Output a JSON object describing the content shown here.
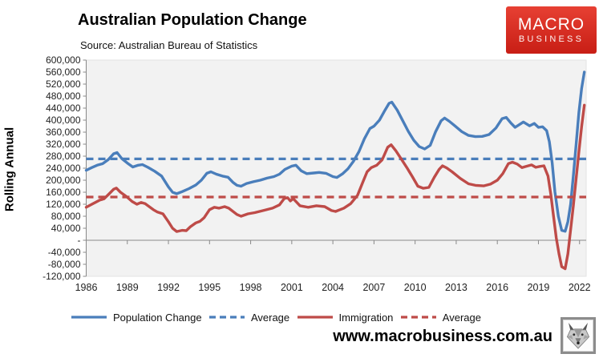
{
  "header": {
    "title": "Australian Population Change",
    "subtitle": "Source: Australian Bureau of Statistics"
  },
  "logo": {
    "line1": "MACRO",
    "line2": "BUSINESS",
    "bg_color": "#d2241c"
  },
  "footer": {
    "url": "www.macrobusiness.com.au",
    "icon": "wolf-logo"
  },
  "chart_data": {
    "type": "line",
    "title": "Australian Population Change",
    "xlabel": "",
    "ylabel": "Rolling Annual",
    "ylim": [
      -120000,
      600000
    ],
    "ytick_step": 40000,
    "ytick_labels": [
      "600,000",
      "560,000",
      "520,000",
      "480,000",
      "440,000",
      "400,000",
      "360,000",
      "320,000",
      "280,000",
      "240,000",
      "200,000",
      "160,000",
      "120,000",
      "80,000",
      "40,000",
      "-",
      "-40,000",
      "-80,000",
      "-120,000"
    ],
    "xticks": [
      1986,
      1989,
      1992,
      1995,
      1998,
      2001,
      2004,
      2007,
      2010,
      2013,
      2016,
      2019,
      2022
    ],
    "x_range": [
      1986,
      2022.75
    ],
    "grid": false,
    "plot_bg": "#f2f2f2",
    "axis_color": "#898989",
    "legend_position": "bottom",
    "series": [
      {
        "name": "Population Change",
        "color": "#4A7EBB",
        "style": "solid",
        "points": [
          [
            1986.0,
            233000
          ],
          [
            1986.4,
            242000
          ],
          [
            1986.8,
            250000
          ],
          [
            1987.2,
            255000
          ],
          [
            1987.6,
            268000
          ],
          [
            1988.0,
            288000
          ],
          [
            1988.25,
            292000
          ],
          [
            1988.6,
            272000
          ],
          [
            1989.0,
            257000
          ],
          [
            1989.4,
            244000
          ],
          [
            1989.8,
            250000
          ],
          [
            1990.1,
            252000
          ],
          [
            1990.5,
            243000
          ],
          [
            1991.0,
            230000
          ],
          [
            1991.5,
            214000
          ],
          [
            1992.0,
            178000
          ],
          [
            1992.3,
            160000
          ],
          [
            1992.6,
            155000
          ],
          [
            1993.0,
            162000
          ],
          [
            1993.5,
            172000
          ],
          [
            1994.0,
            184000
          ],
          [
            1994.4,
            200000
          ],
          [
            1994.8,
            223000
          ],
          [
            1995.1,
            228000
          ],
          [
            1995.5,
            220000
          ],
          [
            1996.0,
            213000
          ],
          [
            1996.35,
            210000
          ],
          [
            1996.7,
            193000
          ],
          [
            1997.0,
            183000
          ],
          [
            1997.3,
            180000
          ],
          [
            1997.7,
            189000
          ],
          [
            1998.2,
            195000
          ],
          [
            1998.7,
            200000
          ],
          [
            1999.2,
            207000
          ],
          [
            1999.7,
            212000
          ],
          [
            2000.1,
            220000
          ],
          [
            2000.5,
            236000
          ],
          [
            2001.0,
            247000
          ],
          [
            2001.3,
            250000
          ],
          [
            2001.7,
            231000
          ],
          [
            2002.1,
            222000
          ],
          [
            2002.6,
            224000
          ],
          [
            2003.0,
            226000
          ],
          [
            2003.5,
            223000
          ],
          [
            2004.0,
            212000
          ],
          [
            2004.3,
            209000
          ],
          [
            2004.7,
            221000
          ],
          [
            2005.1,
            238000
          ],
          [
            2005.5,
            263000
          ],
          [
            2005.9,
            295000
          ],
          [
            2006.3,
            338000
          ],
          [
            2006.7,
            372000
          ],
          [
            2007.0,
            380000
          ],
          [
            2007.4,
            400000
          ],
          [
            2007.8,
            433000
          ],
          [
            2008.1,
            456000
          ],
          [
            2008.3,
            460000
          ],
          [
            2008.7,
            433000
          ],
          [
            2009.1,
            398000
          ],
          [
            2009.5,
            363000
          ],
          [
            2009.9,
            333000
          ],
          [
            2010.3,
            312000
          ],
          [
            2010.7,
            304000
          ],
          [
            2011.1,
            316000
          ],
          [
            2011.5,
            362000
          ],
          [
            2011.9,
            398000
          ],
          [
            2012.15,
            407000
          ],
          [
            2012.5,
            396000
          ],
          [
            2012.9,
            381000
          ],
          [
            2013.4,
            362000
          ],
          [
            2013.9,
            349000
          ],
          [
            2014.4,
            345000
          ],
          [
            2014.9,
            346000
          ],
          [
            2015.4,
            352000
          ],
          [
            2015.9,
            374000
          ],
          [
            2016.35,
            405000
          ],
          [
            2016.65,
            409000
          ],
          [
            2017.0,
            390000
          ],
          [
            2017.3,
            376000
          ],
          [
            2017.9,
            394000
          ],
          [
            2018.35,
            381000
          ],
          [
            2018.7,
            389000
          ],
          [
            2019.0,
            376000
          ],
          [
            2019.3,
            378000
          ],
          [
            2019.6,
            365000
          ],
          [
            2019.8,
            328000
          ],
          [
            2020.0,
            258000
          ],
          [
            2020.2,
            162000
          ],
          [
            2020.45,
            80000
          ],
          [
            2020.7,
            33000
          ],
          [
            2020.95,
            30000
          ],
          [
            2021.15,
            62000
          ],
          [
            2021.35,
            120000
          ],
          [
            2021.55,
            215000
          ],
          [
            2021.75,
            320000
          ],
          [
            2021.95,
            425000
          ],
          [
            2022.15,
            505000
          ],
          [
            2022.35,
            560000
          ]
        ]
      },
      {
        "name": "Average",
        "color": "#4A7EBB",
        "style": "dashed",
        "value": 271000
      },
      {
        "name": "Immigration",
        "color": "#BE4B48",
        "style": "solid",
        "points": [
          [
            1986.0,
            110000
          ],
          [
            1986.5,
            122000
          ],
          [
            1987.0,
            134000
          ],
          [
            1987.3,
            138000
          ],
          [
            1987.7,
            156000
          ],
          [
            1988.0,
            170000
          ],
          [
            1988.2,
            174000
          ],
          [
            1988.5,
            160000
          ],
          [
            1988.8,
            150000
          ],
          [
            1989.0,
            143000
          ],
          [
            1989.35,
            129000
          ],
          [
            1989.7,
            120000
          ],
          [
            1990.0,
            126000
          ],
          [
            1990.3,
            122000
          ],
          [
            1990.9,
            102000
          ],
          [
            1991.2,
            94000
          ],
          [
            1991.6,
            88000
          ],
          [
            1992.0,
            62000
          ],
          [
            1992.3,
            40000
          ],
          [
            1992.6,
            29000
          ],
          [
            1993.0,
            33000
          ],
          [
            1993.3,
            32000
          ],
          [
            1993.6,
            45000
          ],
          [
            1994.0,
            58000
          ],
          [
            1994.3,
            63000
          ],
          [
            1994.6,
            75000
          ],
          [
            1995.0,
            102000
          ],
          [
            1995.35,
            110000
          ],
          [
            1995.7,
            107000
          ],
          [
            1996.1,
            112000
          ],
          [
            1996.4,
            107000
          ],
          [
            1997.0,
            86000
          ],
          [
            1997.3,
            80000
          ],
          [
            1997.8,
            88000
          ],
          [
            1998.3,
            92000
          ],
          [
            1999.0,
            100000
          ],
          [
            1999.6,
            107000
          ],
          [
            2000.1,
            118000
          ],
          [
            2000.45,
            139000
          ],
          [
            2000.7,
            142000
          ],
          [
            2000.9,
            131000
          ],
          [
            2001.1,
            139000
          ],
          [
            2001.6,
            115000
          ],
          [
            2002.2,
            110000
          ],
          [
            2002.8,
            115000
          ],
          [
            2003.4,
            112000
          ],
          [
            2003.9,
            99000
          ],
          [
            2004.2,
            96000
          ],
          [
            2004.8,
            107000
          ],
          [
            2005.3,
            122000
          ],
          [
            2005.8,
            150000
          ],
          [
            2006.2,
            195000
          ],
          [
            2006.5,
            228000
          ],
          [
            2006.8,
            242000
          ],
          [
            2007.2,
            250000
          ],
          [
            2007.6,
            268000
          ],
          [
            2008.0,
            310000
          ],
          [
            2008.25,
            318000
          ],
          [
            2008.6,
            298000
          ],
          [
            2009.0,
            270000
          ],
          [
            2009.4,
            242000
          ],
          [
            2009.8,
            212000
          ],
          [
            2010.2,
            180000
          ],
          [
            2010.6,
            173000
          ],
          [
            2011.0,
            176000
          ],
          [
            2011.4,
            210000
          ],
          [
            2011.75,
            236000
          ],
          [
            2012.0,
            248000
          ],
          [
            2012.3,
            241000
          ],
          [
            2012.7,
            228000
          ],
          [
            2013.3,
            206000
          ],
          [
            2013.9,
            188000
          ],
          [
            2014.4,
            183000
          ],
          [
            2015.0,
            181000
          ],
          [
            2015.5,
            187000
          ],
          [
            2016.0,
            200000
          ],
          [
            2016.4,
            222000
          ],
          [
            2016.8,
            255000
          ],
          [
            2017.1,
            260000
          ],
          [
            2017.45,
            254000
          ],
          [
            2017.8,
            242000
          ],
          [
            2018.1,
            246000
          ],
          [
            2018.5,
            251000
          ],
          [
            2018.8,
            243000
          ],
          [
            2019.1,
            246000
          ],
          [
            2019.4,
            248000
          ],
          [
            2019.7,
            214000
          ],
          [
            2019.9,
            153000
          ],
          [
            2020.1,
            80000
          ],
          [
            2020.3,
            8000
          ],
          [
            2020.5,
            -45000
          ],
          [
            2020.7,
            -88000
          ],
          [
            2020.95,
            -95000
          ],
          [
            2021.15,
            -45000
          ],
          [
            2021.35,
            35000
          ],
          [
            2021.55,
            115000
          ],
          [
            2021.75,
            206000
          ],
          [
            2021.95,
            294000
          ],
          [
            2022.15,
            378000
          ],
          [
            2022.35,
            450000
          ]
        ]
      },
      {
        "name": "Average",
        "color": "#BE4B48",
        "style": "dashed",
        "value": 144000
      }
    ]
  }
}
